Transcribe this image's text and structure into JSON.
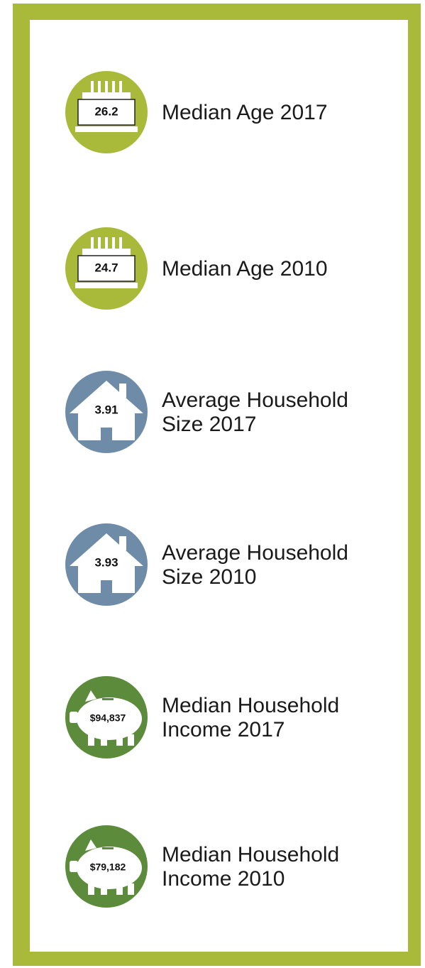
{
  "items": [
    {
      "value": "26.2",
      "label": [
        "Median Age 2017"
      ]
    },
    {
      "value": "24.7",
      "label": [
        "Median Age 2010"
      ]
    },
    {
      "value": "3.91",
      "label": [
        "Average Household",
        "Size 2017"
      ]
    },
    {
      "value": "3.93",
      "label": [
        "Average Household",
        "Size 2010"
      ]
    },
    {
      "value": "$94,837",
      "label": [
        "Median Household",
        "Income 2017"
      ]
    },
    {
      "value": "$79,182",
      "label": [
        "Median Household",
        "Income 2010"
      ]
    }
  ]
}
